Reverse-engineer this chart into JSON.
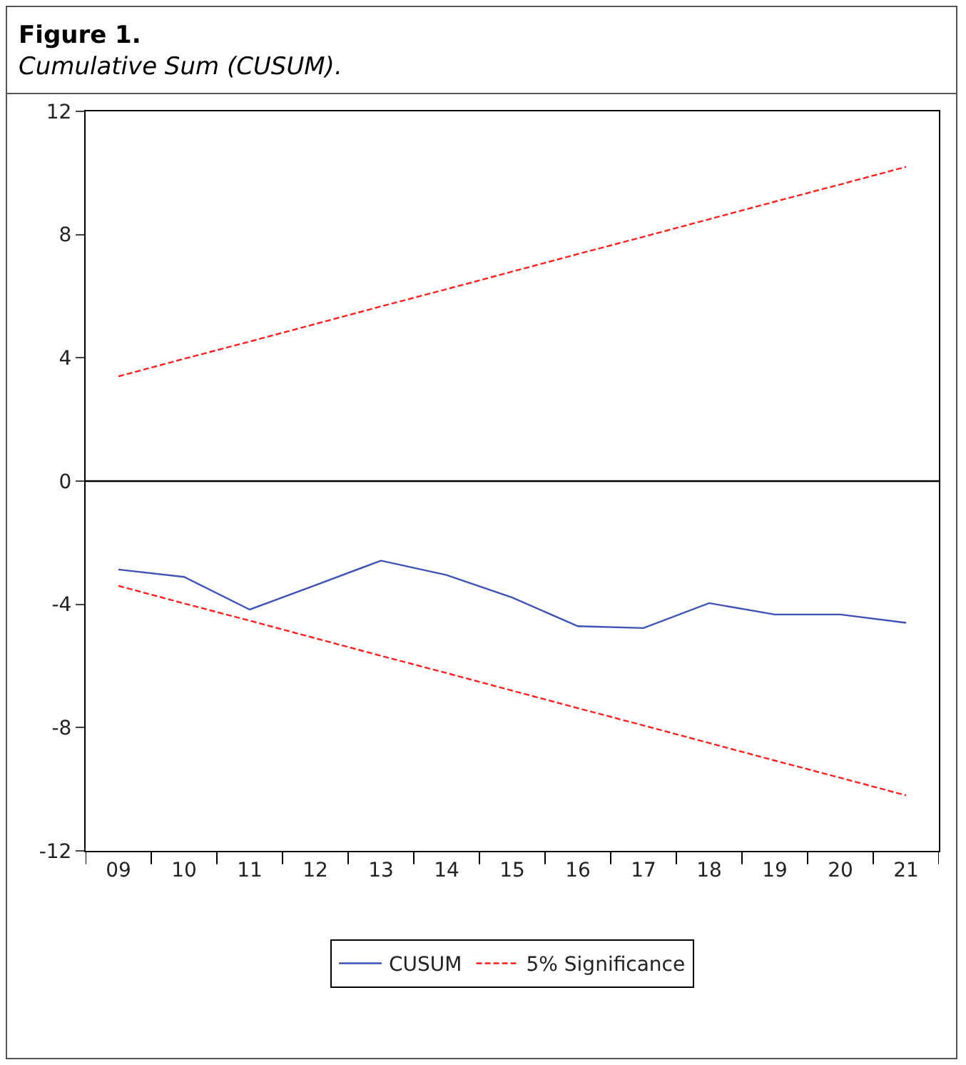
{
  "chart_data": {
    "type": "line",
    "title": "Figure 1.",
    "subtitle": "Cumulative Sum (CUSUM).",
    "categories": [
      "09",
      "10",
      "11",
      "12",
      "13",
      "14",
      "15",
      "16",
      "17",
      "18",
      "19",
      "20",
      "21"
    ],
    "series": [
      {
        "name": "CUSUM",
        "color": "#3f51b5",
        "line_style": "solid",
        "values": [
          -2.87,
          -3.11,
          -4.17,
          -3.38,
          -2.58,
          -3.05,
          -3.78,
          -4.71,
          -4.77,
          -3.96,
          -4.33,
          -4.33,
          -4.6
        ]
      },
      {
        "name": "5% Significance",
        "color": "#ff1f1f",
        "line_style": "dashed",
        "values": [
          3.4,
          3.97,
          4.53,
          5.1,
          5.67,
          6.23,
          6.8,
          7.37,
          7.93,
          8.5,
          9.07,
          9.63,
          10.2
        ]
      },
      {
        "color": "#ff1f1f",
        "line_style": "dashed",
        "values": [
          -3.4,
          -3.97,
          -4.53,
          -5.1,
          -5.67,
          -6.23,
          -6.8,
          -7.37,
          -7.93,
          -8.5,
          -9.07,
          -9.63,
          -10.2
        ]
      }
    ],
    "ylim": [
      -12,
      12
    ],
    "yticks": [
      -12,
      -8,
      -4,
      0,
      4,
      8,
      12
    ],
    "grid": false,
    "legend": "bottom",
    "marker": "none",
    "ref_lines": [
      {
        "axis": "y",
        "value": 0,
        "color": "#000000",
        "line_style": "solid"
      }
    ]
  }
}
